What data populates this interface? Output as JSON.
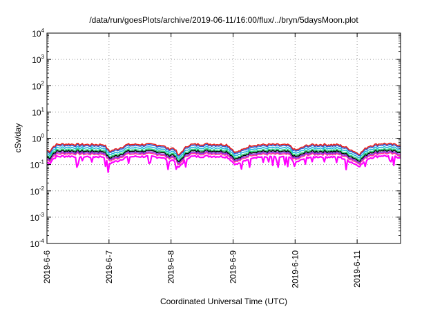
{
  "chart_data": {
    "type": "line",
    "title": "/data/run/goesPlots/archive/2019-06-11/16:00/flux/../bryn/5daysMoon.plot",
    "xlabel": "Coordinated Universal Time (UTC)",
    "ylabel": "cSv/day",
    "yscale": "log",
    "ylim": [
      0.0001,
      10000
    ],
    "xlim_days": [
      0,
      5.7
    ],
    "grid": true,
    "legend": "none",
    "y_ticks": [
      {
        "base": "10",
        "exp": "-4"
      },
      {
        "base": "10",
        "exp": "-3"
      },
      {
        "base": "10",
        "exp": "-2"
      },
      {
        "base": "10",
        "exp": "-1"
      },
      {
        "base": "10",
        "exp": "0"
      },
      {
        "base": "10",
        "exp": "1"
      },
      {
        "base": "10",
        "exp": "2"
      },
      {
        "base": "10",
        "exp": "3"
      },
      {
        "base": "10",
        "exp": "4"
      }
    ],
    "x_ticks": [
      "2019-6-6",
      "2019-6-7",
      "2019-6-8",
      "2019-6-9",
      "2019-6-10",
      "2019-6-11"
    ],
    "series": [
      {
        "name": "red",
        "color": "#e8221f",
        "base": 0.58
      },
      {
        "name": "blue",
        "color": "#2a5fd6",
        "base": 0.52
      },
      {
        "name": "cyan",
        "color": "#1fb8e0",
        "base": 0.43
      },
      {
        "name": "green",
        "color": "#2fd47a",
        "base": 0.36
      },
      {
        "name": "black",
        "color": "#000000",
        "base": 0.32
      },
      {
        "name": "purple",
        "color": "#8a2be2",
        "base": 0.28
      },
      {
        "name": "pink",
        "color": "#ff3399",
        "base": 0.25
      },
      {
        "name": "magenta",
        "color": "#ff00ff",
        "base": 0.2
      }
    ],
    "daily_profile": {
      "note": "approximate diurnal modulation relative to series base (days 0-5.7)",
      "t": [
        0,
        0.05,
        0.08,
        0.15,
        0.3,
        0.6,
        0.92,
        1.0,
        1.05,
        1.15,
        1.3,
        1.6,
        1.85,
        1.95,
        2.05,
        2.12,
        2.3,
        2.6,
        2.9,
        3.0,
        3.05,
        3.15,
        3.3,
        3.6,
        3.9,
        4.0,
        4.08,
        4.2,
        4.4,
        4.7,
        4.98,
        5.05,
        5.1,
        5.2,
        5.4,
        5.7
      ],
      "m": [
        0.6,
        0.55,
        0.75,
        1.0,
        1.05,
        1.0,
        1.0,
        0.55,
        0.6,
        0.7,
        1.0,
        1.02,
        0.95,
        0.7,
        0.75,
        0.35,
        1.0,
        1.05,
        1.0,
        0.6,
        0.5,
        0.62,
        0.95,
        1.0,
        0.95,
        0.6,
        0.7,
        0.95,
        1.0,
        0.98,
        0.5,
        0.45,
        0.6,
        0.9,
        1.1,
        0.95
      ]
    }
  }
}
